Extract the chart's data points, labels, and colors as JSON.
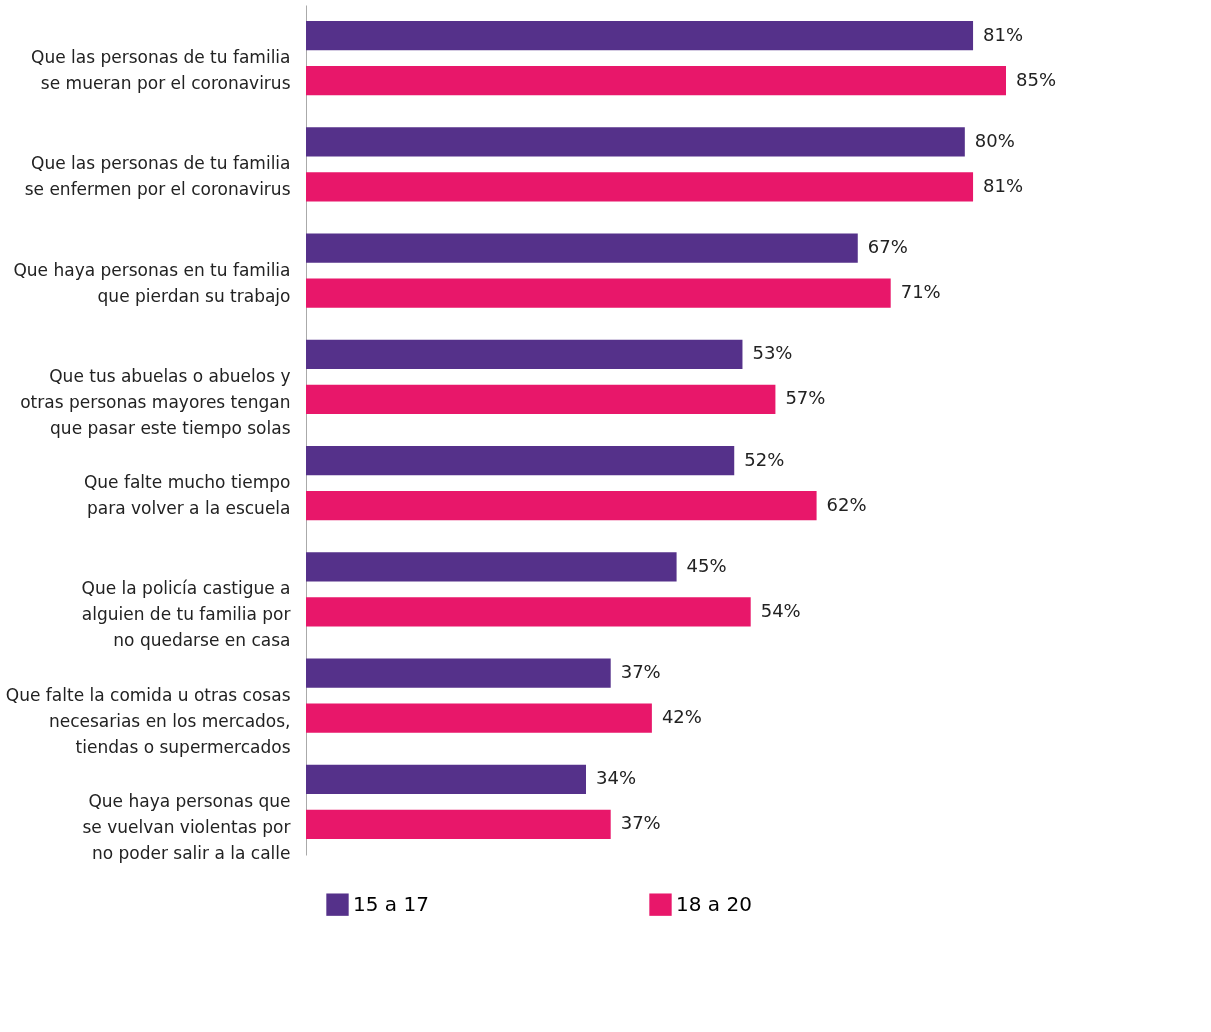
{
  "chart_data": {
    "type": "bar",
    "orientation": "horizontal",
    "legend": "bottom",
    "categories": [
      "Que las personas de tu familia\nse mueran por el coronavirus",
      "Que las personas de tu familia\nse enfermen por el coronavirus",
      "Que haya personas en tu familia\nque pierdan su trabajo",
      "Que tus abuelas o abuelos y\notras personas mayores tengan\nque pasar este tiempo solas",
      "Que falte mucho tiempo\npara volver a la escuela",
      "Que la policía castigue a\nalguien de tu familia por\nno quedarse en casa",
      "Que falte la comida u otras cosas\nnecesarias en los mercados,\ntiendas o supermercados",
      "Que haya personas que\nse vuelvan violentas por\nno poder salir a la calle"
    ],
    "series": [
      {
        "name": "15 a 17",
        "color": "#55318a",
        "values": [
          81,
          80,
          67,
          53,
          52,
          45,
          37,
          34
        ],
        "value_labels": [
          "81%",
          "80%",
          "67%",
          "53%",
          "52%",
          "45%",
          "37%",
          "34%"
        ]
      },
      {
        "name": "18 a 20",
        "color": "#e8176a",
        "values": [
          85,
          81,
          71,
          57,
          62,
          54,
          42,
          37
        ],
        "value_labels": [
          "85%",
          "81%",
          "71%",
          "57%",
          "62%",
          "54%",
          "42%",
          "37%"
        ]
      }
    ]
  }
}
